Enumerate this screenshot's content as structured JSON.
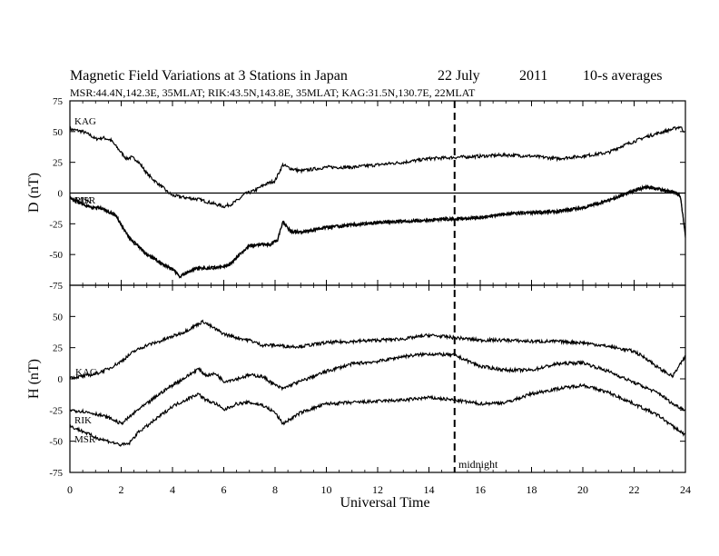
{
  "header": {
    "title": "Magnetic Field Variations at 3 Stations in Japan",
    "date": "22 July",
    "year": "2011",
    "averaging": "10-s averages",
    "stations_line": "MSR:44.4N,142.3E, 35MLAT;  RIK:43.5N,143.8E, 35MLAT;  KAG:31.5N,130.7E, 22MLAT"
  },
  "chart_data": [
    {
      "type": "line",
      "panel": "top",
      "ylabel": "D (nT)",
      "xlabel": "",
      "xlim": [
        0,
        24
      ],
      "ylim": [
        -75,
        75
      ],
      "yticks": [
        75,
        50,
        25,
        0,
        -25,
        -50,
        -75
      ],
      "xticks": [
        0,
        2,
        4,
        6,
        8,
        10,
        12,
        14,
        16,
        18,
        20,
        22,
        24
      ],
      "zero_line": true,
      "series": [
        {
          "name": "KAG",
          "x": [
            0,
            0.5,
            0.8,
            1.0,
            1.3,
            1.6,
            1.8,
            2.0,
            2.2,
            2.4,
            2.6,
            2.8,
            3.0,
            3.3,
            3.6,
            3.8,
            4.0,
            4.3,
            4.6,
            5.0,
            5.5,
            6.0,
            6.3,
            6.6,
            6.8,
            7.2,
            7.6,
            8.0,
            8.3,
            8.6,
            9.0,
            10,
            11,
            12,
            13,
            14,
            15,
            16,
            17,
            18,
            19,
            20,
            21,
            21.5,
            22,
            22.5,
            23,
            23.5,
            23.8,
            23.95
          ],
          "y": [
            52,
            50,
            47,
            44,
            45,
            43,
            38,
            33,
            28,
            29,
            27,
            22,
            16,
            10,
            5,
            1,
            -2,
            -3,
            -4,
            -5,
            -8,
            -11,
            -9,
            -5,
            -1,
            2,
            7,
            10,
            23,
            20,
            18,
            21,
            21,
            23,
            25,
            28,
            29,
            30,
            31,
            30,
            28,
            30,
            33,
            38,
            42,
            46,
            49,
            52,
            54,
            50
          ]
        },
        {
          "name": "RIK",
          "x": [
            0,
            0.4,
            0.8,
            1.2,
            1.6,
            1.8,
            2.0,
            2.3,
            2.6,
            3.0,
            3.3,
            3.6,
            4.0,
            4.3,
            4.6,
            5.0,
            5.5,
            6.0,
            6.3,
            6.6,
            7.0,
            7.4,
            7.8,
            8.1,
            8.3,
            8.6,
            9.0,
            10,
            11,
            12,
            13,
            14,
            15,
            16,
            17,
            18,
            19,
            20,
            21,
            22,
            22.5,
            23,
            23.5,
            23.8,
            24
          ],
          "y": [
            -4,
            -8,
            -12,
            -12,
            -16,
            -18,
            -26,
            -36,
            -42,
            -50,
            -53,
            -58,
            -62,
            -68,
            -64,
            -61,
            -61,
            -60,
            -57,
            -50,
            -43,
            -42,
            -42,
            -38,
            -23,
            -31,
            -32,
            -28,
            -26,
            -24,
            -23,
            -22,
            -21,
            -20,
            -17,
            -16,
            -15,
            -12,
            -6,
            2,
            5,
            3,
            1,
            -2,
            -35
          ]
        },
        {
          "name": "MSR",
          "x": [
            0,
            0.4,
            0.8,
            1.2,
            1.6,
            1.8,
            2.0,
            2.3,
            2.6,
            3.0,
            3.3,
            3.6,
            4.0,
            4.3,
            4.6,
            5.0,
            5.5,
            6.0,
            6.3,
            6.6,
            7.0,
            7.4,
            7.8,
            8.1,
            8.3,
            8.6,
            9.0,
            10,
            11,
            12,
            13,
            14,
            15,
            16,
            17,
            18,
            19,
            20,
            21,
            22,
            22.5,
            23,
            23.5,
            23.8,
            24
          ],
          "y": [
            -4,
            -8,
            -12,
            -12,
            -16,
            -18,
            -26,
            -36,
            -42,
            -50,
            -53,
            -58,
            -62,
            -68,
            -64,
            -61,
            -61,
            -60,
            -57,
            -50,
            -43,
            -42,
            -42,
            -38,
            -23,
            -31,
            -32,
            -28,
            -26,
            -24,
            -23,
            -22,
            -21,
            -20,
            -17,
            -16,
            -15,
            -12,
            -6,
            2,
            5,
            3,
            1,
            -2,
            -35
          ]
        }
      ]
    },
    {
      "type": "line",
      "panel": "bottom",
      "ylabel": "H (nT)",
      "xlabel": "Universal Time",
      "xlim": [
        0,
        24
      ],
      "ylim": [
        -75,
        75
      ],
      "yticks": [
        50,
        25,
        0,
        -25,
        -50,
        -75
      ],
      "xticks": [
        0,
        2,
        4,
        6,
        8,
        10,
        12,
        14,
        16,
        18,
        20,
        22,
        24
      ],
      "series": [
        {
          "name": "KAG",
          "x": [
            0,
            0.5,
            1.0,
            1.5,
            2.0,
            2.5,
            3.0,
            3.5,
            4.0,
            4.5,
            5.0,
            5.2,
            5.5,
            6.0,
            6.5,
            7.0,
            7.5,
            8.0,
            8.5,
            9.0,
            10,
            11,
            12,
            13,
            14,
            15,
            16,
            17,
            18,
            19,
            20,
            21,
            22,
            22.5,
            23,
            23.5,
            24
          ],
          "y": [
            1,
            2,
            4,
            8,
            14,
            22,
            27,
            30,
            34,
            38,
            44,
            46,
            42,
            36,
            33,
            31,
            27,
            27,
            26,
            26,
            29,
            30,
            31,
            32,
            35,
            33,
            31,
            31,
            30,
            30,
            29,
            26,
            22,
            16,
            8,
            2,
            18
          ]
        },
        {
          "name": "RIK",
          "x": [
            0,
            0.5,
            1.0,
            1.5,
            2.0,
            2.3,
            2.7,
            3.0,
            3.5,
            4.0,
            4.5,
            5.0,
            5.3,
            5.7,
            6.0,
            6.5,
            7.0,
            7.5,
            8.0,
            8.3,
            8.7,
            9.0,
            10,
            11,
            12,
            13,
            14,
            15,
            16,
            17,
            18,
            19,
            20,
            21,
            22,
            23,
            23.5,
            24
          ],
          "y": [
            -25,
            -26,
            -28,
            -31,
            -36,
            -31,
            -24,
            -20,
            -12,
            -5,
            1,
            8,
            3,
            4,
            -2,
            0,
            3,
            2,
            -5,
            -8,
            -4,
            -2,
            6,
            12,
            14,
            18,
            20,
            19,
            10,
            7,
            7,
            12,
            13,
            6,
            -3,
            -12,
            -20,
            -25
          ]
        },
        {
          "name": "MSR",
          "x": [
            0,
            0.5,
            1.0,
            1.5,
            2.0,
            2.3,
            2.7,
            3.0,
            3.5,
            4.0,
            4.5,
            5.0,
            5.3,
            5.7,
            6.0,
            6.5,
            7.0,
            7.5,
            8.0,
            8.3,
            8.7,
            9.0,
            10,
            11,
            12,
            13,
            14,
            15,
            16,
            17,
            18,
            19,
            20,
            21,
            22,
            23,
            23.5,
            24
          ],
          "y": [
            -38,
            -42,
            -47,
            -50,
            -53,
            -52,
            -42,
            -38,
            -30,
            -22,
            -17,
            -12,
            -17,
            -20,
            -25,
            -20,
            -19,
            -21,
            -27,
            -36,
            -31,
            -27,
            -20,
            -19,
            -18,
            -17,
            -15,
            -17,
            -20,
            -19,
            -12,
            -8,
            -5,
            -11,
            -20,
            -30,
            -38,
            -45
          ]
        }
      ]
    }
  ],
  "annotations": {
    "midnight_label": "midnight",
    "midnight_x": 15
  }
}
